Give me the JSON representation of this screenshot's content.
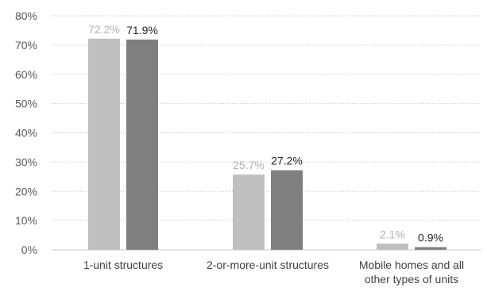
{
  "chart_data": {
    "type": "bar",
    "categories": [
      [
        "1-unit structures"
      ],
      [
        "2-or-more-unit structures"
      ],
      [
        "Mobile homes and all",
        "other types of units"
      ]
    ],
    "series": [
      {
        "values": [
          72.2,
          25.7,
          2.1
        ],
        "labels": [
          "72.2%",
          "25.7%",
          "2.1%"
        ],
        "color": "#bfbfbf",
        "label_color": "#b0b0b0"
      },
      {
        "values": [
          71.9,
          27.2,
          0.9
        ],
        "labels": [
          "71.9%",
          "27.2%",
          "0.9%"
        ],
        "color": "#7f7f7f",
        "label_color": "#262626"
      }
    ],
    "y_ticks": [
      {
        "value": 0,
        "label": "0%"
      },
      {
        "value": 10,
        "label": "10%"
      },
      {
        "value": 20,
        "label": "20%"
      },
      {
        "value": 30,
        "label": "30%"
      },
      {
        "value": 40,
        "label": "40%"
      },
      {
        "value": 50,
        "label": "50%"
      },
      {
        "value": 60,
        "label": "60%"
      },
      {
        "value": 70,
        "label": "70%"
      },
      {
        "value": 80,
        "label": "80%"
      }
    ],
    "ylim": [
      0,
      80
    ],
    "grid": true,
    "grid_style": "dotted",
    "legend": "none",
    "colors": {
      "grid": "#bfbfbf",
      "axis": "#bfbfbf",
      "tick_text": "#595959",
      "category_text": "#404040"
    }
  }
}
